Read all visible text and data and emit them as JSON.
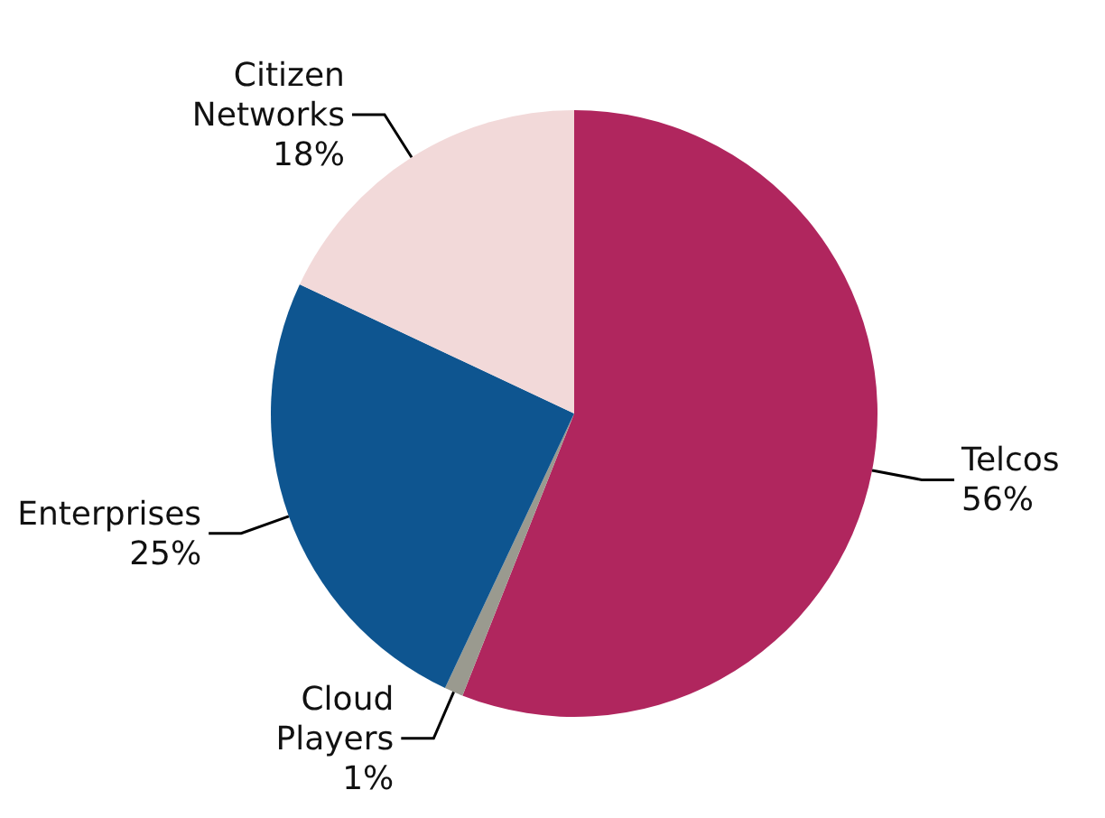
{
  "chart_data": {
    "type": "pie",
    "categories": [
      "Telcos",
      "Cloud Players",
      "Enterprises",
      "Citizen Networks"
    ],
    "values": [
      56,
      1,
      25,
      18
    ],
    "colors": [
      "#b0265e",
      "#9a9a8f",
      "#0e5590",
      "#f2d9d9"
    ],
    "value_labels": [
      "56%",
      "1%",
      "25%",
      "18%"
    ],
    "legend": false
  }
}
